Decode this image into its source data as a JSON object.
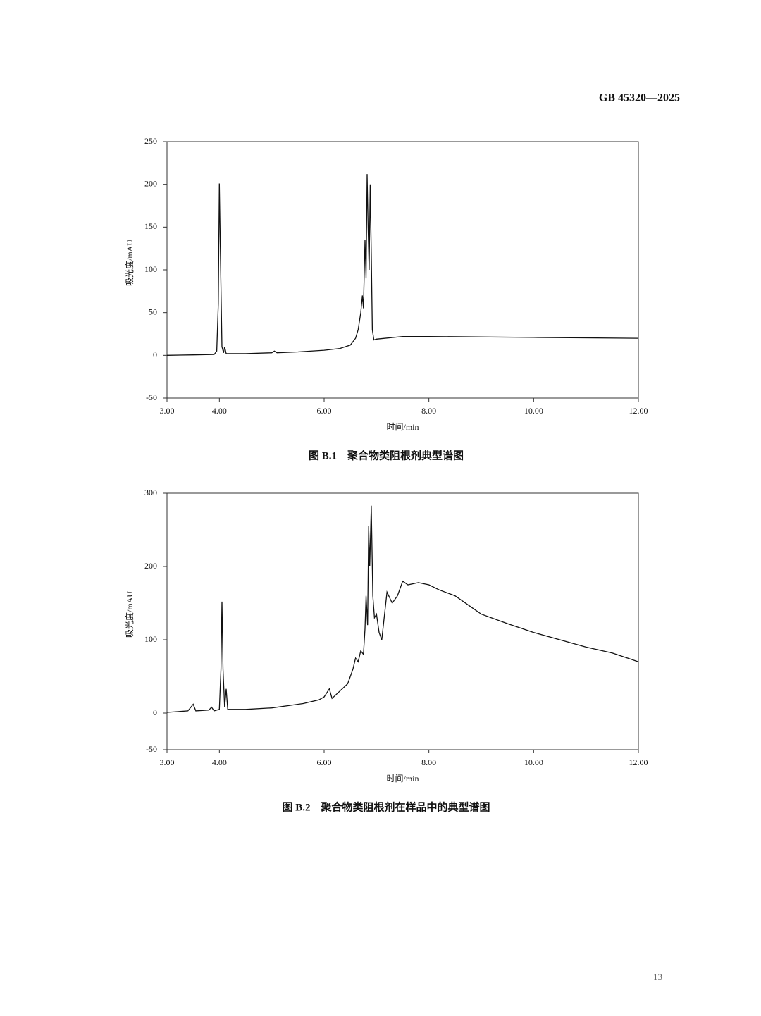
{
  "header": "GB 45320—2025",
  "page_number": "13",
  "chart_data": [
    {
      "type": "line",
      "caption": "图 B.1　聚合物类阻根剂典型谱图",
      "x_label": "时间/min",
      "y_label": "吸光度/mAU",
      "xlim": [
        3,
        12
      ],
      "ylim": [
        -50,
        250
      ],
      "xticks": [
        {
          "value": 3,
          "label": "3.00"
        },
        {
          "value": 4,
          "label": "4.00"
        },
        {
          "value": 6,
          "label": "6.00"
        },
        {
          "value": 8,
          "label": "8.00"
        },
        {
          "value": 10,
          "label": "10.00"
        },
        {
          "value": 12,
          "label": "12.00"
        }
      ],
      "yticks": [
        -50,
        0,
        50,
        100,
        150,
        200,
        250
      ],
      "series": [
        {
          "color": "#111111",
          "x": [
            3.0,
            3.5,
            3.9,
            3.95,
            3.98,
            4.0,
            4.02,
            4.05,
            4.08,
            4.1,
            4.13,
            4.5,
            5.0,
            5.05,
            5.1,
            5.5,
            6.0,
            6.3,
            6.5,
            6.6,
            6.65,
            6.7,
            6.73,
            6.75,
            6.78,
            6.8,
            6.82,
            6.84,
            6.86,
            6.88,
            6.9,
            6.92,
            6.95,
            7.0,
            7.5,
            8.0,
            10.0,
            12.0
          ],
          "values": [
            0,
            0.5,
            1,
            5,
            60,
            201,
            120,
            10,
            3,
            10,
            2,
            2,
            3,
            5,
            3,
            4,
            6,
            8,
            12,
            20,
            30,
            50,
            70,
            55,
            135,
            90,
            212,
            150,
            100,
            200,
            120,
            30,
            18,
            19,
            22,
            22,
            21,
            20
          ]
        }
      ]
    },
    {
      "type": "line",
      "caption": "图 B.2　聚合物类阻根剂在样品中的典型谱图",
      "x_label": "时间/min",
      "y_label": "吸光度/mAU",
      "xlim": [
        3,
        12
      ],
      "ylim": [
        -50,
        300
      ],
      "xticks": [
        {
          "value": 3,
          "label": "3.00"
        },
        {
          "value": 4,
          "label": "4.00"
        },
        {
          "value": 6,
          "label": "6.00"
        },
        {
          "value": 8,
          "label": "8.00"
        },
        {
          "value": 10,
          "label": "10.00"
        },
        {
          "value": 12,
          "label": "12.00"
        }
      ],
      "yticks": [
        -50,
        0,
        100,
        200,
        300
      ],
      "series": [
        {
          "color": "#111111",
          "x": [
            3.0,
            3.4,
            3.5,
            3.55,
            3.8,
            3.85,
            3.9,
            4.0,
            4.03,
            4.05,
            4.07,
            4.1,
            4.13,
            4.16,
            4.5,
            5.0,
            5.3,
            5.6,
            5.9,
            6.0,
            6.1,
            6.15,
            6.3,
            6.45,
            6.55,
            6.6,
            6.65,
            6.7,
            6.75,
            6.78,
            6.8,
            6.83,
            6.85,
            6.87,
            6.9,
            6.93,
            6.96,
            7.0,
            7.05,
            7.1,
            7.2,
            7.3,
            7.4,
            7.5,
            7.6,
            7.8,
            8.0,
            8.2,
            8.5,
            8.8,
            9.0,
            9.5,
            10.0,
            10.5,
            11.0,
            11.5,
            12.0
          ],
          "values": [
            1,
            3,
            12,
            3,
            4,
            8,
            3,
            5,
            60,
            152,
            60,
            8,
            33,
            5,
            5,
            7,
            10,
            13,
            18,
            22,
            33,
            20,
            30,
            40,
            60,
            75,
            70,
            85,
            80,
            115,
            160,
            120,
            255,
            200,
            283,
            160,
            130,
            135,
            110,
            100,
            165,
            150,
            160,
            180,
            175,
            178,
            175,
            168,
            160,
            145,
            135,
            122,
            110,
            100,
            90,
            82,
            70
          ]
        }
      ]
    }
  ]
}
